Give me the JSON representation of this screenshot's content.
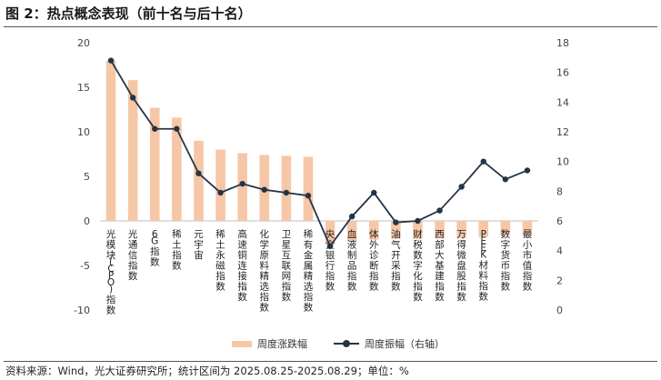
{
  "header": {
    "title": "图 2：热点概念表现（前十名与后十名）"
  },
  "footer": {
    "source": "资料来源：Wind，光大证券研究所；统计区间为 2025.08.25-2025.08.29；单位：%"
  },
  "chart_data": {
    "type": "bar",
    "categories": [
      "光模块(CPO)指数",
      "光通信指数",
      "6G指数",
      "稀土指数",
      "元宇宙",
      "稀土永磁指数",
      "高速铜连接指数",
      "化学原料精选指数",
      "卫星互联网指数",
      "稀有金属精选指数",
      "央企银行指数",
      "血液制品指数",
      "体外诊断指数",
      "油气开采指数",
      "财税数字化指数",
      "西部大基建指数",
      "万得微盘股指数",
      "PEEK材料指数",
      "数字货币指数",
      "最小市值指数"
    ],
    "series": [
      {
        "name": "周度涨跌幅",
        "type": "bar",
        "axis": "left",
        "color": "#f6c7a6",
        "values": [
          18.0,
          15.8,
          12.7,
          11.6,
          9.0,
          8.0,
          7.6,
          7.4,
          7.3,
          7.2,
          -2.6,
          -2.3,
          -2.1,
          -2.0,
          -2.0,
          -1.9,
          -1.9,
          -1.8,
          -1.6,
          -1.6
        ]
      },
      {
        "name": "周度振幅（右轴）",
        "type": "line",
        "axis": "right",
        "color": "#243447",
        "values": [
          16.8,
          14.3,
          12.2,
          12.2,
          9.2,
          7.9,
          8.5,
          8.1,
          7.9,
          7.7,
          4.3,
          6.3,
          7.9,
          5.9,
          6.0,
          6.7,
          8.3,
          10.0,
          8.8,
          9.4
        ]
      }
    ],
    "y_left": {
      "min": -10,
      "max": 20,
      "ticks": [
        20,
        15,
        10,
        5,
        0,
        -5,
        -10
      ]
    },
    "y_right": {
      "min": 0,
      "max": 18,
      "ticks": [
        18,
        16,
        14,
        12,
        10,
        8,
        6,
        4,
        2,
        0
      ]
    },
    "legend": {
      "position": "bottom"
    },
    "grid": false
  }
}
